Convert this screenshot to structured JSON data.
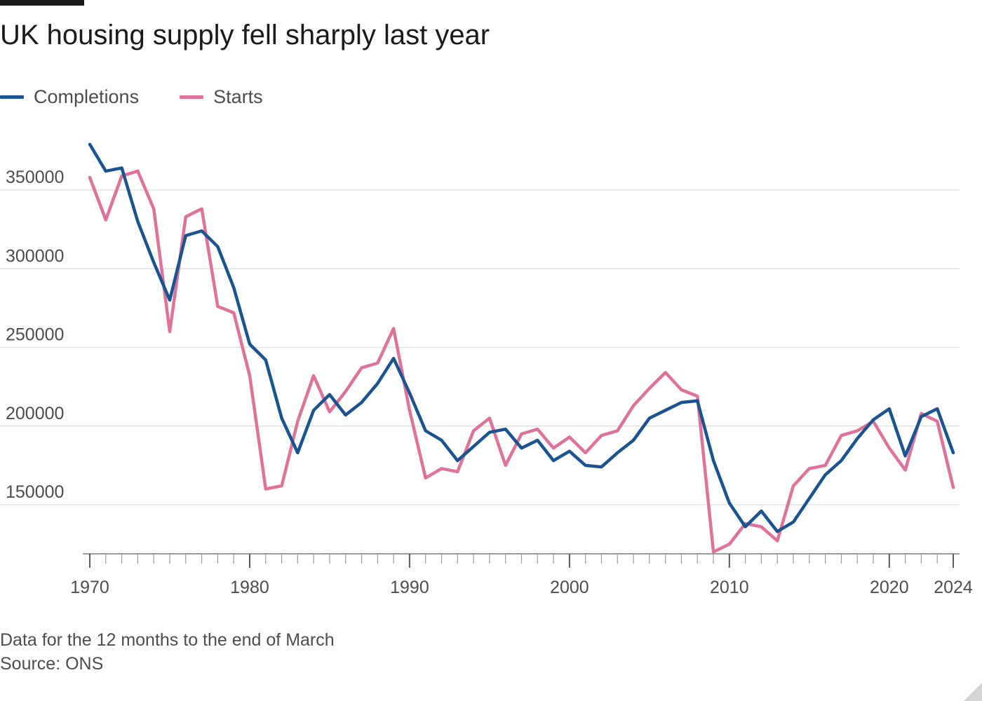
{
  "title": "UK housing supply fell sharply last year",
  "legend": {
    "completions": "Completions",
    "starts": "Starts"
  },
  "footnote": {
    "note": "Data for the 12 months to the end of March",
    "source": "Source: ONS"
  },
  "colors": {
    "completions": "#1a5391",
    "starts": "#e0719a",
    "gridline": "#e3e3e3",
    "axis": "#7a7a7a",
    "text": "#4d4d4d"
  },
  "chart_data": {
    "type": "line",
    "title": "UK housing supply fell sharply last year",
    "xlabel": "",
    "ylabel": "",
    "xlim": [
      1970,
      2024
    ],
    "ylim": [
      120000,
      380000
    ],
    "grid": true,
    "legend_position": "top-left",
    "x_ticks": [
      "1970",
      "1980",
      "1990",
      "2000",
      "2010",
      "2020",
      "2024"
    ],
    "y_ticks": [
      "150000",
      "200000",
      "250000",
      "300000",
      "350000"
    ],
    "x": [
      1970,
      1971,
      1972,
      1973,
      1974,
      1975,
      1976,
      1977,
      1978,
      1979,
      1980,
      1981,
      1982,
      1983,
      1984,
      1985,
      1986,
      1987,
      1988,
      1989,
      1990,
      1991,
      1992,
      1993,
      1994,
      1995,
      1996,
      1997,
      1998,
      1999,
      2000,
      2001,
      2002,
      2003,
      2004,
      2005,
      2006,
      2007,
      2008,
      2009,
      2010,
      2011,
      2012,
      2013,
      2014,
      2015,
      2016,
      2017,
      2018,
      2019,
      2020,
      2021,
      2022,
      2023,
      2024
    ],
    "series": [
      {
        "name": "Completions",
        "values": [
          379000,
          362000,
          364000,
          330000,
          304000,
          280000,
          321000,
          324000,
          314000,
          288000,
          252000,
          242000,
          205000,
          183000,
          210000,
          220000,
          207000,
          215000,
          227000,
          243000,
          221000,
          197000,
          191000,
          178000,
          187000,
          196000,
          198000,
          186000,
          191000,
          178000,
          184000,
          175000,
          174000,
          183000,
          191000,
          205000,
          210000,
          215000,
          216000,
          178000,
          151000,
          136000,
          146000,
          133000,
          139000,
          154000,
          169000,
          178000,
          192000,
          204000,
          211000,
          181000,
          206000,
          211000,
          183000
        ]
      },
      {
        "name": "Starts",
        "values": [
          358000,
          331000,
          359000,
          362000,
          338000,
          260000,
          333000,
          338000,
          276000,
          272000,
          232000,
          160000,
          162000,
          203000,
          232000,
          209000,
          222000,
          237000,
          240000,
          262000,
          210000,
          167000,
          173000,
          171000,
          197000,
          205000,
          175000,
          195000,
          198000,
          186000,
          193000,
          183000,
          194000,
          197000,
          213000,
          224000,
          234000,
          223000,
          219000,
          120000,
          125000,
          138000,
          136000,
          127000,
          162000,
          173000,
          175000,
          194000,
          197000,
          203000,
          186000,
          172000,
          208000,
          203000,
          161000
        ]
      }
    ]
  }
}
